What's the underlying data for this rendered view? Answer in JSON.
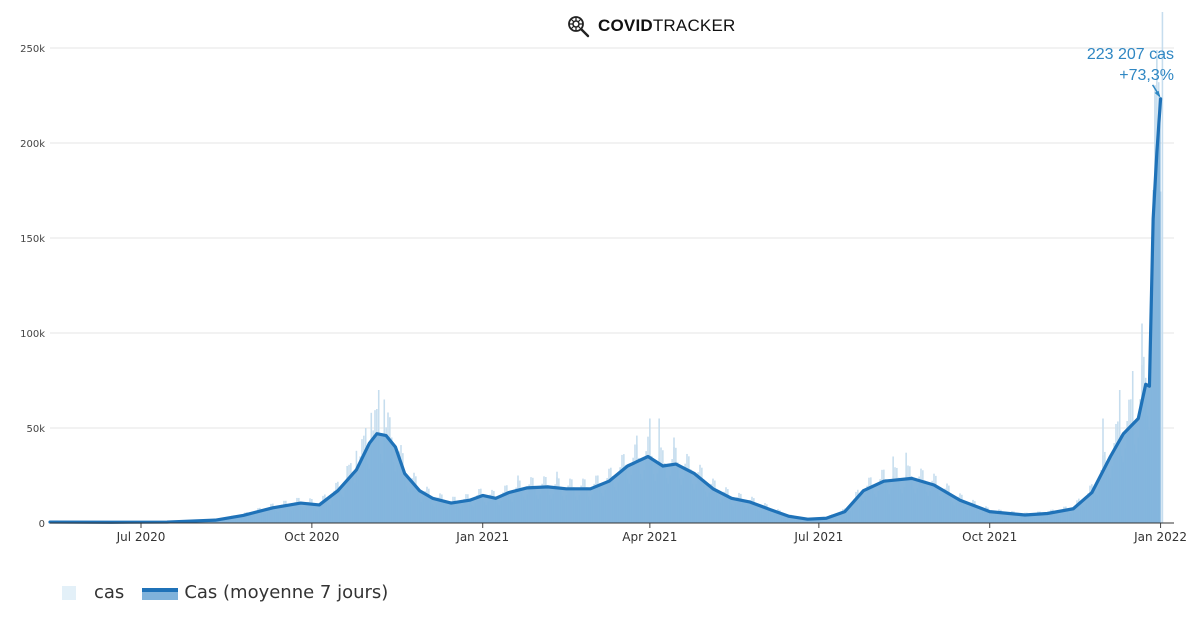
{
  "header": {
    "brand_bold": "COVID",
    "brand_regular": "TRACKER",
    "icon": "virus-magnifier-icon"
  },
  "annotation": {
    "line1": "223 207 cas",
    "line2": "+73,3%"
  },
  "legend": {
    "bar_label": "cas",
    "line_label": "Cas (moyenne 7 jours)"
  },
  "colors": {
    "bar": "#c6ddee",
    "area": "#7fb2db",
    "line": "#1f72b8",
    "grid": "#e6e6e6",
    "annotation": "#2f87c3"
  },
  "chart_data": {
    "type": "bar",
    "title": "",
    "xlabel": "",
    "ylabel": "",
    "ylim": [
      0,
      250000
    ],
    "xlim": [
      "2020-05-13",
      "2022-01-05"
    ],
    "y_ticks": [
      {
        "value": 0,
        "label": "0"
      },
      {
        "value": 50000,
        "label": "50k"
      },
      {
        "value": 100000,
        "label": "100k"
      },
      {
        "value": 150000,
        "label": "150k"
      },
      {
        "value": 200000,
        "label": "200k"
      },
      {
        "value": 250000,
        "label": "250k"
      }
    ],
    "x_ticks": [
      {
        "date": "2020-07-01",
        "label": "Jul 2020"
      },
      {
        "date": "2020-10-01",
        "label": "Oct 2020"
      },
      {
        "date": "2021-01-01",
        "label": "Jan 2021"
      },
      {
        "date": "2021-04-01",
        "label": "Apr 2021"
      },
      {
        "date": "2021-07-01",
        "label": "Jul 2021"
      },
      {
        "date": "2021-10-01",
        "label": "Oct 2021"
      },
      {
        "date": "2022-01-01",
        "label": "Jan 2022"
      }
    ],
    "series": [
      {
        "name": "Cas (moyenne 7 jours)",
        "kind": "line",
        "points": [
          [
            "2020-05-13",
            500
          ],
          [
            "2020-06-15",
            400
          ],
          [
            "2020-07-15",
            500
          ],
          [
            "2020-08-10",
            1500
          ],
          [
            "2020-08-25",
            4000
          ],
          [
            "2020-09-10",
            8000
          ],
          [
            "2020-09-25",
            10500
          ],
          [
            "2020-10-05",
            9500
          ],
          [
            "2020-10-15",
            17000
          ],
          [
            "2020-10-25",
            28000
          ],
          [
            "2020-11-01",
            42000
          ],
          [
            "2020-11-05",
            47000
          ],
          [
            "2020-11-10",
            46000
          ],
          [
            "2020-11-15",
            40000
          ],
          [
            "2020-11-20",
            26000
          ],
          [
            "2020-11-28",
            17000
          ],
          [
            "2020-12-05",
            13000
          ],
          [
            "2020-12-15",
            10500
          ],
          [
            "2020-12-25",
            12000
          ],
          [
            "2021-01-01",
            14500
          ],
          [
            "2021-01-08",
            13000
          ],
          [
            "2021-01-15",
            16000
          ],
          [
            "2021-01-25",
            18500
          ],
          [
            "2021-02-05",
            19000
          ],
          [
            "2021-02-15",
            18000
          ],
          [
            "2021-02-28",
            18000
          ],
          [
            "2021-03-10",
            22000
          ],
          [
            "2021-03-20",
            30000
          ],
          [
            "2021-03-31",
            35000
          ],
          [
            "2021-04-08",
            30000
          ],
          [
            "2021-04-15",
            31000
          ],
          [
            "2021-04-25",
            26000
          ],
          [
            "2021-05-05",
            18000
          ],
          [
            "2021-05-15",
            13000
          ],
          [
            "2021-05-25",
            11000
          ],
          [
            "2021-06-05",
            7000
          ],
          [
            "2021-06-15",
            3500
          ],
          [
            "2021-06-25",
            2000
          ],
          [
            "2021-07-05",
            2500
          ],
          [
            "2021-07-15",
            6000
          ],
          [
            "2021-07-25",
            17000
          ],
          [
            "2021-08-05",
            22000
          ],
          [
            "2021-08-20",
            23500
          ],
          [
            "2021-09-01",
            20000
          ],
          [
            "2021-09-15",
            12000
          ],
          [
            "2021-10-01",
            6000
          ],
          [
            "2021-10-20",
            4200
          ],
          [
            "2021-11-01",
            5000
          ],
          [
            "2021-11-15",
            7500
          ],
          [
            "2021-11-25",
            16000
          ],
          [
            "2021-12-05",
            35000
          ],
          [
            "2021-12-12",
            47000
          ],
          [
            "2021-12-20",
            55000
          ],
          [
            "2021-12-24",
            73000
          ],
          [
            "2021-12-26",
            72000
          ],
          [
            "2021-12-28",
            160000
          ],
          [
            "2021-12-30",
            195000
          ],
          [
            "2022-01-01",
            223207
          ]
        ]
      },
      {
        "name": "cas",
        "kind": "bar",
        "points": [
          [
            "2020-10-20",
            30000
          ],
          [
            "2020-10-25",
            38000
          ],
          [
            "2020-10-30",
            50000
          ],
          [
            "2020-11-02",
            58000
          ],
          [
            "2020-11-06",
            70000
          ],
          [
            "2020-11-09",
            65000
          ],
          [
            "2020-11-13",
            45000
          ],
          [
            "2021-01-20",
            25000
          ],
          [
            "2021-02-10",
            27000
          ],
          [
            "2021-03-25",
            46000
          ],
          [
            "2021-04-01",
            55000
          ],
          [
            "2021-04-06",
            55000
          ],
          [
            "2021-04-14",
            45000
          ],
          [
            "2021-08-10",
            35000
          ],
          [
            "2021-08-17",
            37000
          ],
          [
            "2021-12-01",
            55000
          ],
          [
            "2021-12-10",
            70000
          ],
          [
            "2021-12-17",
            80000
          ],
          [
            "2021-12-22",
            105000
          ],
          [
            "2021-12-29",
            225000
          ],
          [
            "2021-12-31",
            232000
          ],
          [
            "2022-01-02",
            270000
          ]
        ]
      }
    ]
  }
}
